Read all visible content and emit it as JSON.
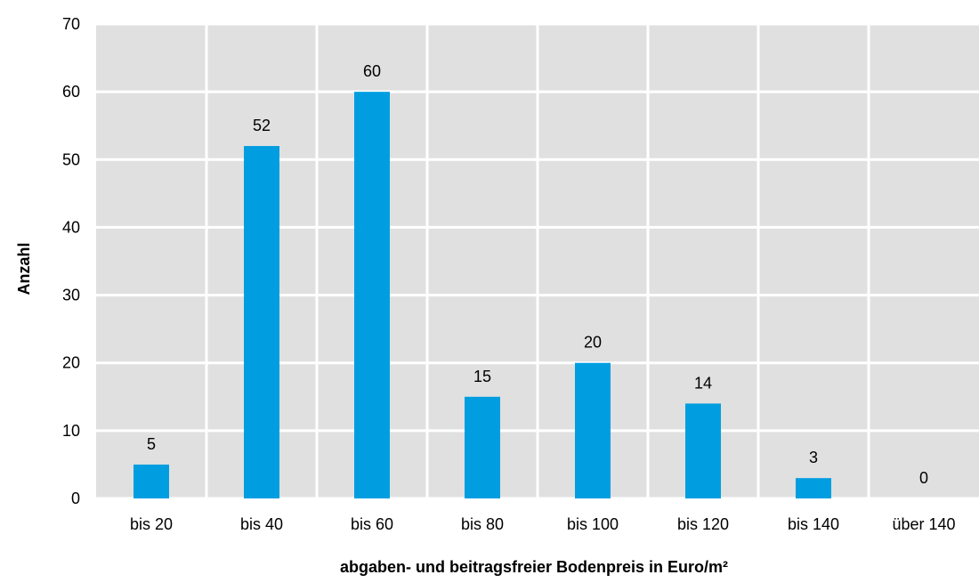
{
  "chart_data": {
    "type": "bar",
    "title": "",
    "xlabel": "abgaben- und beitragsfreier Bodenpreis in Euro/m²",
    "ylabel": "Anzahl",
    "categories": [
      "bis 20",
      "bis 40",
      "bis 60",
      "bis 80",
      "bis 100",
      "bis 120",
      "bis 140",
      "über 140"
    ],
    "values": [
      5,
      52,
      60,
      15,
      20,
      14,
      3,
      0
    ],
    "ylim": [
      0,
      70
    ],
    "yticks": [
      0,
      10,
      20,
      30,
      40,
      50,
      60,
      70
    ],
    "grid": true,
    "legend": "none",
    "colors": {
      "bar": "#009ee0",
      "plot_background": "#e0e0e0",
      "grid": "#ffffff"
    }
  }
}
